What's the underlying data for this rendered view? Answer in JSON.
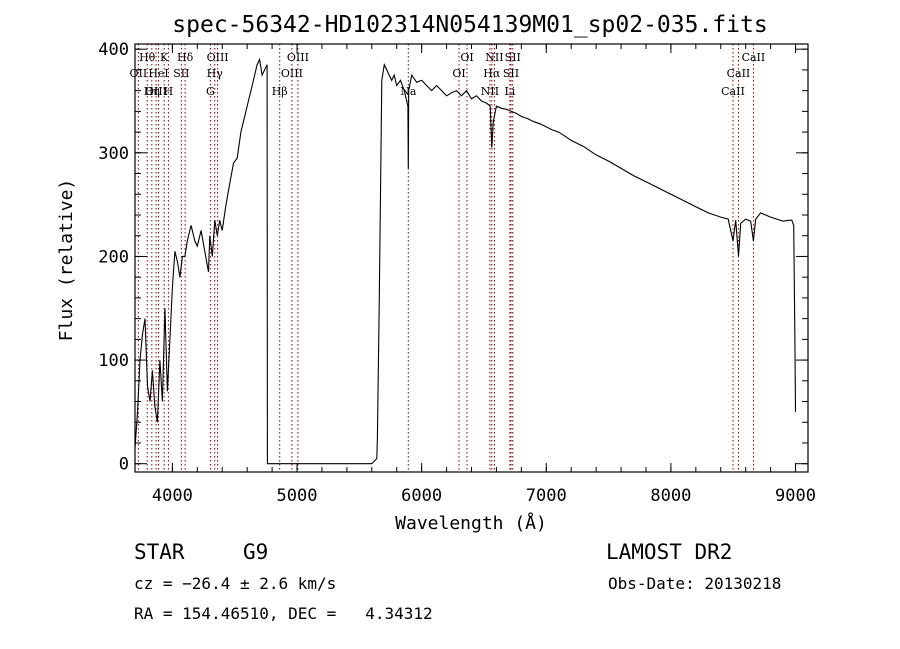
{
  "chart_data": {
    "type": "line",
    "title": "spec-56342-HD102314N054139M01_sp02-035.fits",
    "xlabel": "Wavelength (Å)",
    "ylabel": "Flux (relative)",
    "xlim": [
      3700,
      9100
    ],
    "ylim": [
      -8,
      405
    ],
    "x_ticks": [
      4000,
      5000,
      6000,
      7000,
      8000,
      9000
    ],
    "y_ticks": [
      0,
      100,
      200,
      300,
      400
    ],
    "grid": false,
    "series": [
      {
        "x": [
          3700,
          3720,
          3740,
          3760,
          3780,
          3800,
          3820,
          3840,
          3860,
          3880,
          3900,
          3920,
          3940,
          3960,
          3980,
          4000,
          4020,
          4040,
          4060,
          4080,
          4100,
          4120,
          4150,
          4180,
          4200,
          4230,
          4260,
          4290,
          4300,
          4320,
          4340,
          4360,
          4380,
          4400,
          4430,
          4460,
          4490,
          4520,
          4550,
          4580,
          4610,
          4640,
          4680,
          4700,
          4720,
          4740,
          4760,
          4762,
          4780,
          4800,
          5000,
          5200,
          5400,
          5600,
          5640,
          5645,
          5660,
          5680,
          5700,
          5720,
          5740,
          5760,
          5780,
          5800,
          5830,
          5860,
          5890,
          5893,
          5896,
          5920,
          5960,
          6000,
          6040,
          6080,
          6120,
          6160,
          6200,
          6240,
          6280,
          6320,
          6360,
          6400,
          6440,
          6480,
          6520,
          6550,
          6563,
          6575,
          6600,
          6640,
          6680,
          6720,
          6760,
          6800,
          6850,
          6900,
          6950,
          7000,
          7050,
          7100,
          7150,
          7200,
          7300,
          7400,
          7500,
          7600,
          7700,
          7800,
          7900,
          8000,
          8100,
          8200,
          8300,
          8400,
          8460,
          8498,
          8520,
          8542,
          8560,
          8600,
          8640,
          8662,
          8680,
          8720,
          8760,
          8800,
          8850,
          8900,
          8950,
          8970,
          8985,
          8995,
          9000
        ],
        "values": [
          15,
          50,
          100,
          125,
          140,
          75,
          60,
          90,
          55,
          40,
          100,
          60,
          150,
          70,
          120,
          170,
          205,
          195,
          180,
          200,
          200,
          215,
          230,
          215,
          210,
          225,
          205,
          185,
          220,
          200,
          235,
          220,
          235,
          225,
          250,
          270,
          290,
          295,
          320,
          335,
          350,
          365,
          385,
          390,
          375,
          380,
          385,
          0,
          0,
          0,
          0,
          0,
          0,
          0,
          5,
          25,
          160,
          370,
          385,
          380,
          375,
          370,
          375,
          365,
          370,
          360,
          345,
          285,
          360,
          375,
          368,
          370,
          365,
          360,
          365,
          360,
          355,
          358,
          360,
          355,
          360,
          352,
          355,
          350,
          348,
          345,
          305,
          330,
          345,
          343,
          342,
          340,
          338,
          335,
          333,
          330,
          328,
          325,
          322,
          320,
          316,
          312,
          306,
          298,
          292,
          285,
          278,
          272,
          266,
          260,
          254,
          248,
          242,
          238,
          236,
          215,
          235,
          200,
          232,
          236,
          234,
          215,
          236,
          242,
          240,
          238,
          236,
          234,
          235,
          235,
          230,
          120,
          50
        ]
      }
    ],
    "line_labels": [
      {
        "label": "Hθ",
        "x": 3798,
        "row": 1
      },
      {
        "label": "OII",
        "x": 3727,
        "row": 2
      },
      {
        "label": "OIII",
        "x": 3869,
        "row": 3
      },
      {
        "label": "K",
        "x": 3934,
        "row": 1
      },
      {
        "label": "HeI",
        "x": 3889,
        "row": 2
      },
      {
        "label": "Hη",
        "x": 3835,
        "row": 3
      },
      {
        "label": "Hδ",
        "x": 4102,
        "row": 1
      },
      {
        "label": "SII",
        "x": 4072,
        "row": 2
      },
      {
        "label": "H",
        "x": 3968,
        "row": 3
      },
      {
        "label": "OIII",
        "x": 4363,
        "row": 1
      },
      {
        "label": "Hγ",
        "x": 4340,
        "row": 2
      },
      {
        "label": "G",
        "x": 4305,
        "row": 3
      },
      {
        "label": "OIII",
        "x": 5007,
        "row": 1
      },
      {
        "label": "OIII",
        "x": 4959,
        "row": 2
      },
      {
        "label": "Hβ",
        "x": 4861,
        "row": 3
      },
      {
        "label": "Na",
        "x": 5893,
        "row": 3
      },
      {
        "label": "OI",
        "x": 6364,
        "row": 1
      },
      {
        "label": "OI",
        "x": 6300,
        "row": 2
      },
      {
        "label": "NII",
        "x": 6584,
        "row": 1
      },
      {
        "label": "Hα",
        "x": 6563,
        "row": 2
      },
      {
        "label": "NII",
        "x": 6548,
        "row": 3
      },
      {
        "label": "SII",
        "x": 6731,
        "row": 1
      },
      {
        "label": "SII",
        "x": 6717,
        "row": 2
      },
      {
        "label": "Li",
        "x": 6708,
        "row": 3
      },
      {
        "label": "CaII",
        "x": 8662,
        "row": 1
      },
      {
        "label": "CaII",
        "x": 8542,
        "row": 2
      },
      {
        "label": "CaII",
        "x": 8498,
        "row": 3
      }
    ]
  },
  "info": {
    "object_class": "STAR",
    "subclass": "G9",
    "survey": "LAMOST DR2",
    "cz": "cz = −26.4 ± 2.6 km/s",
    "obs_date": "Obs-Date: 20130218",
    "coords": "RA = 154.46510, DEC =   4.34312"
  },
  "colors": {
    "spectrum": "#000000",
    "line_markers": "#8b0000"
  }
}
